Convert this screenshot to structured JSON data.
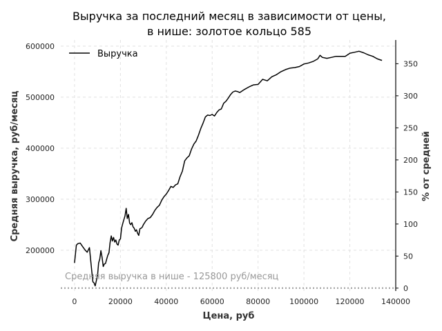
{
  "chart_data": {
    "type": "line",
    "title_line1": "Выручка за последний месяц в зависимости от цены,",
    "title_line2": "в нише: золотое кольцо 585",
    "xlabel": "Цена, руб",
    "ylabel": "Средняя выручка, руб/месяц",
    "y2label": "% от средней",
    "xlim": [
      -6000,
      140000
    ],
    "ylim": [
      120000,
      612000
    ],
    "y2lim": [
      -4.5,
      387
    ],
    "x_ticks": [
      0,
      20000,
      40000,
      60000,
      80000,
      100000,
      120000,
      140000
    ],
    "y_ticks": [
      200000,
      300000,
      400000,
      500000,
      600000
    ],
    "y2_ticks": [
      0,
      50,
      100,
      150,
      200,
      250,
      300,
      350
    ],
    "grid": true,
    "legend_position": "top-left",
    "series": [
      {
        "name": "Выручка",
        "color": "#000000",
        "x": [
          0,
          800,
          1500,
          2500,
          3500,
          4500,
          5500,
          6500,
          7500,
          8000,
          8500,
          9000,
          9500,
          10000,
          10500,
          11000,
          11500,
          12000,
          12500,
          13000,
          13500,
          14000,
          14500,
          15000,
          15500,
          16000,
          16500,
          17000,
          17500,
          18000,
          18500,
          19000,
          19500,
          20000,
          20500,
          21000,
          21500,
          22000,
          22500,
          23000,
          23500,
          24000,
          24500,
          25000,
          25500,
          26000,
          26500,
          27000,
          27500,
          28000,
          28500,
          29000,
          29500,
          30000,
          31000,
          32000,
          33000,
          34000,
          35000,
          36000,
          37000,
          38000,
          39000,
          40000,
          41000,
          42000,
          43000,
          44000,
          45000,
          46000,
          47000,
          48000,
          49000,
          50000,
          51000,
          52000,
          53000,
          54000,
          55000,
          56000,
          57000,
          58000,
          59000,
          60000,
          61000,
          62000,
          63000,
          64000,
          65000,
          66000,
          67000,
          68000,
          69000,
          70000,
          71000,
          72000,
          74000,
          76000,
          78000,
          80000,
          81000,
          82000,
          84000,
          86000,
          88000,
          90000,
          92000,
          94000,
          96000,
          98000,
          100000,
          102000,
          104000,
          106000,
          107000,
          108000,
          110000,
          112000,
          114000,
          116000,
          118000,
          120000,
          122000,
          124000,
          126000,
          128000,
          130000,
          132000,
          134000
        ],
        "y": [
          175000,
          210000,
          213000,
          214000,
          207000,
          201000,
          196000,
          205000,
          160000,
          138000,
          136000,
          130000,
          140000,
          150000,
          175000,
          183000,
          199000,
          186000,
          168000,
          173000,
          174000,
          182000,
          190000,
          195000,
          215000,
          228000,
          218000,
          225000,
          216000,
          220000,
          212000,
          210000,
          220000,
          222000,
          243000,
          252000,
          260000,
          267000,
          282000,
          262000,
          270000,
          253000,
          250000,
          254000,
          246000,
          243000,
          237000,
          240000,
          233000,
          229000,
          242000,
          243000,
          245000,
          250000,
          257000,
          262000,
          264000,
          270000,
          278000,
          284000,
          288000,
          298000,
          305000,
          310000,
          317000,
          325000,
          323000,
          328000,
          330000,
          344000,
          355000,
          375000,
          381000,
          385000,
          398000,
          408000,
          414000,
          425000,
          438000,
          449000,
          461000,
          465000,
          464000,
          466000,
          463000,
          470000,
          475000,
          477000,
          488000,
          492000,
          498000,
          505000,
          510000,
          512000,
          511000,
          509000,
          515000,
          520000,
          524000,
          525000,
          530000,
          535000,
          532000,
          540000,
          544000,
          550000,
          554000,
          557000,
          558000,
          560000,
          565000,
          567000,
          570000,
          575000,
          582000,
          578000,
          576000,
          578000,
          580000,
          580000,
          580000,
          586000,
          588000,
          590000,
          587000,
          583000,
          580000,
          575000,
          572000
        ]
      }
    ],
    "annotation": {
      "text": "Средняя выручка в нише - 125800 руб/месяц",
      "value": 125800,
      "color": "#999999"
    }
  }
}
